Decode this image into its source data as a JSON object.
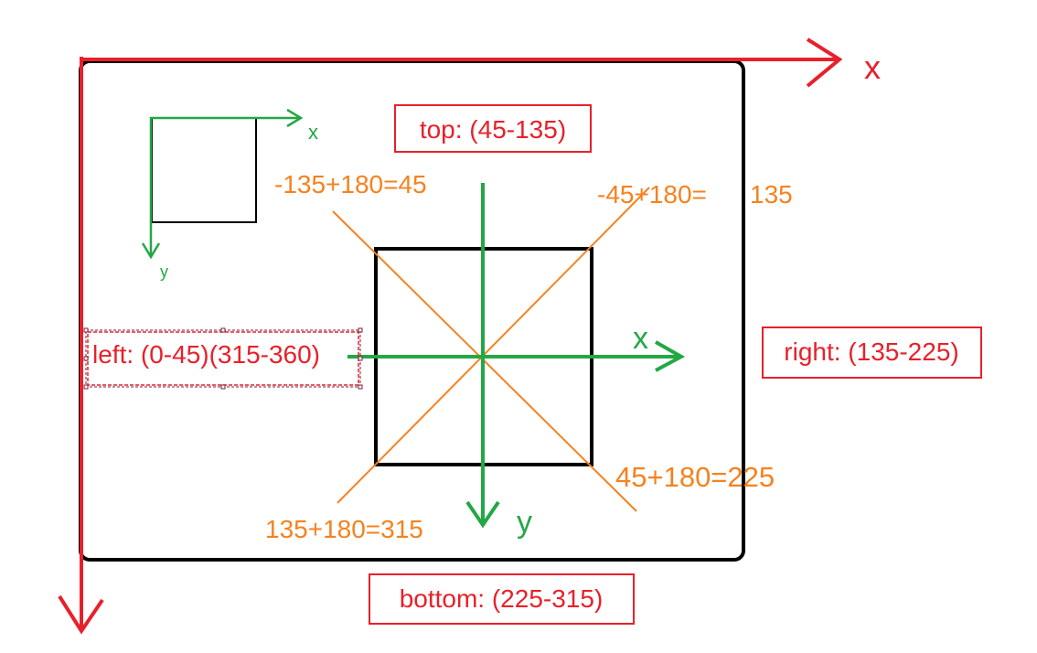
{
  "colors": {
    "red": "#e8202a",
    "green": "#22a845",
    "orange": "#f5821f",
    "black": "#000000",
    "selection_handle": "#7a1f3d"
  },
  "axes": {
    "outer_x_label": "x",
    "small_x_label": "x",
    "small_y_label": "y",
    "center_x_label": "x",
    "center_y_label": "y"
  },
  "regions": {
    "top": "top: (45-135)",
    "left": "left: (0-45)(315-360)",
    "right": "right: (135-225)",
    "bottom": "bottom: (225-315)"
  },
  "diagonals": {
    "top_left": "-135+180=45",
    "top_right": "-45+180=",
    "top_right_value": "135",
    "bottom_right": "45+180=225",
    "bottom_left": "135+180=315"
  }
}
